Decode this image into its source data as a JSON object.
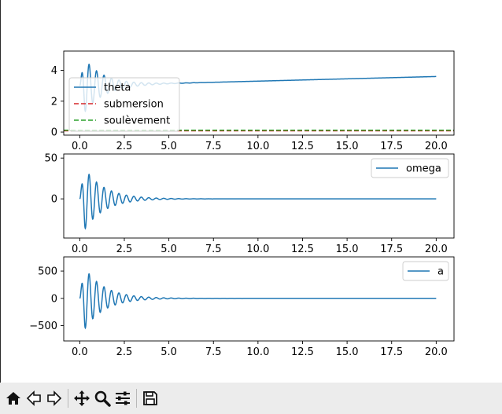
{
  "chart_data": [
    {
      "type": "line",
      "xlim": [
        -0.9,
        21.0
      ],
      "ylim": [
        -0.2,
        5.25
      ],
      "xticks": [
        "0.0",
        "2.5",
        "5.0",
        "7.5",
        "10.0",
        "12.5",
        "15.0",
        "17.5",
        "20.0"
      ],
      "yticks": [
        "0",
        "2",
        "4"
      ],
      "legend_position": "upper-left",
      "series": [
        {
          "name": "theta",
          "style": "solid",
          "color": "#1f77b4",
          "model": {
            "kind": "damped_osc",
            "t_end": 20,
            "base_start": 3.0,
            "base_end": 3.6,
            "amp": 2.2,
            "decay": 0.9,
            "omega": 15.0
          }
        },
        {
          "name": "submersion",
          "style": "dashed",
          "color": "#d62728",
          "values": [
            [
              -0.9,
              0.08
            ],
            [
              21.0,
              0.08
            ]
          ]
        },
        {
          "name": "soulèvement",
          "style": "dashed",
          "color": "#2ca02c",
          "values": [
            [
              -0.9,
              0.12
            ],
            [
              21.0,
              0.12
            ]
          ]
        }
      ]
    },
    {
      "type": "line",
      "xlim": [
        -0.9,
        21.0
      ],
      "ylim": [
        -48,
        55
      ],
      "xticks": [
        "0.0",
        "2.5",
        "5.0",
        "7.5",
        "10.0",
        "12.5",
        "15.0",
        "17.5",
        "20.0"
      ],
      "yticks": [
        "0",
        "50"
      ],
      "legend_position": "upper-right",
      "series": [
        {
          "name": "omega",
          "style": "solid",
          "color": "#1f77b4",
          "model": {
            "kind": "damped_osc",
            "t_end": 20,
            "base_start": 0,
            "base_end": 0,
            "amp": 48,
            "decay": 0.9,
            "omega": 15.0
          }
        }
      ]
    },
    {
      "type": "line",
      "xlim": [
        -0.9,
        21.0
      ],
      "ylim": [
        -780,
        760
      ],
      "xticks": [
        "0.0",
        "2.5",
        "5.0",
        "7.5",
        "10.0",
        "12.5",
        "15.0",
        "17.5",
        "20.0"
      ],
      "yticks": [
        "−500",
        "0",
        "500"
      ],
      "yticks_values": [
        -500,
        0,
        500
      ],
      "legend_position": "upper-right",
      "series": [
        {
          "name": "a",
          "style": "solid",
          "color": "#1f77b4",
          "model": {
            "kind": "damped_osc",
            "t_end": 20,
            "base_start": 0,
            "base_end": 0,
            "amp": 720,
            "decay": 0.9,
            "omega": 15.0
          }
        }
      ]
    }
  ],
  "toolbar": {
    "items": [
      "home-icon",
      "back-icon",
      "forward-icon",
      "pan-icon",
      "zoom-icon",
      "configure-subplots-icon",
      "save-icon"
    ]
  }
}
